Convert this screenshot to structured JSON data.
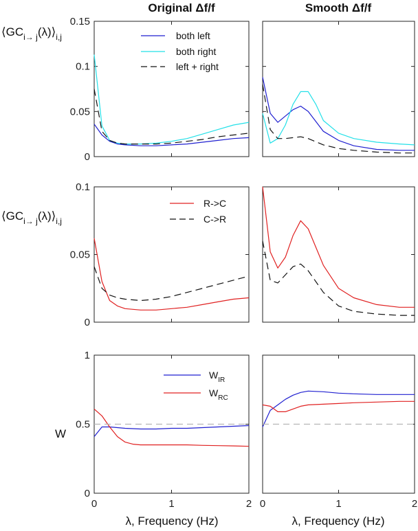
{
  "column_titles": [
    "Original Δf/f",
    "Smooth Δf/f"
  ],
  "xlabel": "λ, Frequency (Hz)",
  "ylabels": {
    "row1": {
      "main": "⟨GC",
      "sub": "i→ j",
      "mid": "(λ)⟩",
      "tail": "i,j"
    },
    "row2": {
      "main": "⟨GC",
      "sub": "i→ j",
      "mid": "(λ)⟩",
      "tail": "i,j"
    },
    "row3": {
      "main": "W"
    }
  },
  "x_ticks": [
    "0",
    "1",
    "2"
  ],
  "x_tick_values": [
    0,
    1,
    2
  ],
  "legend_row1": [
    "both left",
    "both right",
    "left + right"
  ],
  "legend_row2": [
    "R->C",
    "C->R"
  ],
  "legend_row3": [
    {
      "main": "W",
      "sub": "IR"
    },
    {
      "main": "W",
      "sub": "RC"
    }
  ],
  "chart_data": [
    {
      "type": "line",
      "panel": "row1-left",
      "xlim": [
        0,
        2
      ],
      "ylim": [
        0,
        0.15
      ],
      "yticks": [
        "0",
        "0.05",
        "0.1",
        "0.15"
      ],
      "ytick_values": [
        0,
        0.05,
        0.1,
        0.15
      ],
      "series": [
        {
          "name": "both left",
          "color": "#1f1fd0",
          "dash": false,
          "x": [
            0,
            0.1,
            0.2,
            0.3,
            0.4,
            0.6,
            0.8,
            1.0,
            1.2,
            1.4,
            1.6,
            1.8,
            2.0
          ],
          "y": [
            0.036,
            0.024,
            0.017,
            0.014,
            0.013,
            0.012,
            0.012,
            0.013,
            0.014,
            0.016,
            0.018,
            0.02,
            0.021
          ]
        },
        {
          "name": "both right",
          "color": "#22e0e8",
          "dash": false,
          "x": [
            0,
            0.1,
            0.2,
            0.3,
            0.4,
            0.6,
            0.8,
            1.0,
            1.2,
            1.4,
            1.6,
            1.8,
            2.0
          ],
          "y": [
            0.113,
            0.034,
            0.018,
            0.015,
            0.014,
            0.014,
            0.015,
            0.017,
            0.02,
            0.025,
            0.03,
            0.035,
            0.038
          ]
        },
        {
          "name": "left + right",
          "color": "#111111",
          "dash": true,
          "x": [
            0,
            0.1,
            0.2,
            0.3,
            0.4,
            0.6,
            0.8,
            1.0,
            1.2,
            1.4,
            1.6,
            1.8,
            2.0
          ],
          "y": [
            0.075,
            0.028,
            0.018,
            0.015,
            0.014,
            0.014,
            0.014,
            0.015,
            0.017,
            0.019,
            0.022,
            0.024,
            0.026
          ]
        }
      ]
    },
    {
      "type": "line",
      "panel": "row1-right",
      "xlim": [
        0,
        2
      ],
      "ylim": [
        0,
        0.15
      ],
      "series": [
        {
          "name": "both left",
          "color": "#1f1fd0",
          "dash": false,
          "x": [
            0,
            0.1,
            0.2,
            0.3,
            0.4,
            0.5,
            0.6,
            0.8,
            1.0,
            1.2,
            1.5,
            1.8,
            2.0
          ],
          "y": [
            0.088,
            0.048,
            0.038,
            0.045,
            0.052,
            0.056,
            0.05,
            0.028,
            0.018,
            0.012,
            0.008,
            0.007,
            0.007
          ]
        },
        {
          "name": "both right",
          "color": "#22e0e8",
          "dash": false,
          "x": [
            0,
            0.1,
            0.2,
            0.3,
            0.4,
            0.5,
            0.6,
            0.7,
            0.8,
            1.0,
            1.2,
            1.5,
            1.8,
            2.0
          ],
          "y": [
            0.048,
            0.015,
            0.02,
            0.035,
            0.058,
            0.072,
            0.072,
            0.058,
            0.04,
            0.026,
            0.02,
            0.016,
            0.014,
            0.013
          ]
        },
        {
          "name": "left + right",
          "color": "#111111",
          "dash": true,
          "x": [
            0,
            0.1,
            0.2,
            0.3,
            0.4,
            0.5,
            0.6,
            0.8,
            1.0,
            1.2,
            1.5,
            1.8,
            2.0
          ],
          "y": [
            0.08,
            0.03,
            0.02,
            0.02,
            0.021,
            0.022,
            0.02,
            0.013,
            0.009,
            0.007,
            0.005,
            0.004,
            0.004
          ]
        }
      ]
    },
    {
      "type": "line",
      "panel": "row2-left",
      "xlim": [
        0,
        2
      ],
      "ylim": [
        0,
        0.1
      ],
      "yticks": [
        "0",
        "0.05",
        "0.1"
      ],
      "ytick_values": [
        0,
        0.05,
        0.1
      ],
      "series": [
        {
          "name": "R->C",
          "color": "#e02020",
          "dash": false,
          "x": [
            0,
            0.1,
            0.2,
            0.3,
            0.4,
            0.6,
            0.8,
            1.0,
            1.2,
            1.4,
            1.6,
            1.8,
            2.0
          ],
          "y": [
            0.062,
            0.03,
            0.016,
            0.012,
            0.01,
            0.009,
            0.009,
            0.01,
            0.011,
            0.013,
            0.015,
            0.017,
            0.018
          ]
        },
        {
          "name": "C->R",
          "color": "#111111",
          "dash": true,
          "x": [
            0,
            0.1,
            0.2,
            0.3,
            0.4,
            0.6,
            0.8,
            1.0,
            1.2,
            1.4,
            1.6,
            1.8,
            2.0
          ],
          "y": [
            0.041,
            0.025,
            0.02,
            0.018,
            0.017,
            0.016,
            0.017,
            0.019,
            0.022,
            0.025,
            0.028,
            0.031,
            0.034
          ]
        }
      ]
    },
    {
      "type": "line",
      "panel": "row2-right",
      "xlim": [
        0,
        2
      ],
      "ylim": [
        0,
        0.1
      ],
      "series": [
        {
          "name": "R->C",
          "color": "#e02020",
          "dash": false,
          "x": [
            0,
            0.1,
            0.2,
            0.3,
            0.4,
            0.5,
            0.6,
            0.8,
            1.0,
            1.2,
            1.5,
            1.8,
            2.0
          ],
          "y": [
            0.1,
            0.052,
            0.04,
            0.048,
            0.064,
            0.075,
            0.069,
            0.042,
            0.025,
            0.018,
            0.013,
            0.011,
            0.011
          ]
        },
        {
          "name": "C->R",
          "color": "#111111",
          "dash": true,
          "x": [
            0,
            0.1,
            0.2,
            0.3,
            0.4,
            0.5,
            0.6,
            0.8,
            1.0,
            1.2,
            1.5,
            1.8,
            2.0
          ],
          "y": [
            0.06,
            0.031,
            0.029,
            0.035,
            0.041,
            0.043,
            0.038,
            0.022,
            0.012,
            0.008,
            0.006,
            0.005,
            0.005
          ]
        }
      ]
    },
    {
      "type": "line",
      "panel": "row3-left",
      "xlim": [
        0,
        2
      ],
      "ylim": [
        0,
        1
      ],
      "yticks": [
        "0",
        "0.5",
        "1"
      ],
      "ytick_values": [
        0,
        0.5,
        1
      ],
      "series": [
        {
          "name": "W_IR",
          "color": "#1f1fd0",
          "dash": false,
          "x": [
            0,
            0.1,
            0.2,
            0.4,
            0.6,
            0.8,
            1.0,
            1.2,
            1.4,
            1.6,
            1.8,
            2.0
          ],
          "y": [
            0.41,
            0.48,
            0.48,
            0.47,
            0.465,
            0.465,
            0.47,
            0.47,
            0.475,
            0.48,
            0.485,
            0.49
          ]
        },
        {
          "name": "W_RC",
          "color": "#e02020",
          "dash": false,
          "x": [
            0,
            0.1,
            0.2,
            0.3,
            0.4,
            0.5,
            0.6,
            0.8,
            1.0,
            1.2,
            1.4,
            1.6,
            1.8,
            2.0
          ],
          "y": [
            0.61,
            0.56,
            0.48,
            0.41,
            0.37,
            0.355,
            0.35,
            0.35,
            0.35,
            0.35,
            0.347,
            0.345,
            0.343,
            0.34
          ]
        },
        {
          "name": "",
          "color": "#b5b5b5",
          "dash": true,
          "x": [
            0,
            2
          ],
          "y": [
            0.5,
            0.5
          ]
        }
      ]
    },
    {
      "type": "line",
      "panel": "row3-right",
      "xlim": [
        0,
        2
      ],
      "ylim": [
        0,
        1
      ],
      "series": [
        {
          "name": "W_IR",
          "color": "#1f1fd0",
          "dash": false,
          "x": [
            0,
            0.1,
            0.2,
            0.3,
            0.4,
            0.5,
            0.6,
            0.8,
            1.0,
            1.2,
            1.5,
            1.8,
            2.0
          ],
          "y": [
            0.48,
            0.6,
            0.64,
            0.68,
            0.71,
            0.73,
            0.74,
            0.735,
            0.725,
            0.72,
            0.715,
            0.715,
            0.715
          ]
        },
        {
          "name": "W_RC",
          "color": "#e02020",
          "dash": false,
          "x": [
            0,
            0.1,
            0.2,
            0.3,
            0.4,
            0.5,
            0.6,
            0.8,
            1.0,
            1.2,
            1.5,
            1.8,
            2.0
          ],
          "y": [
            0.64,
            0.63,
            0.59,
            0.59,
            0.61,
            0.63,
            0.64,
            0.645,
            0.65,
            0.655,
            0.66,
            0.665,
            0.665
          ]
        },
        {
          "name": "",
          "color": "#b5b5b5",
          "dash": true,
          "x": [
            0,
            2
          ],
          "y": [
            0.5,
            0.5
          ]
        }
      ]
    }
  ]
}
